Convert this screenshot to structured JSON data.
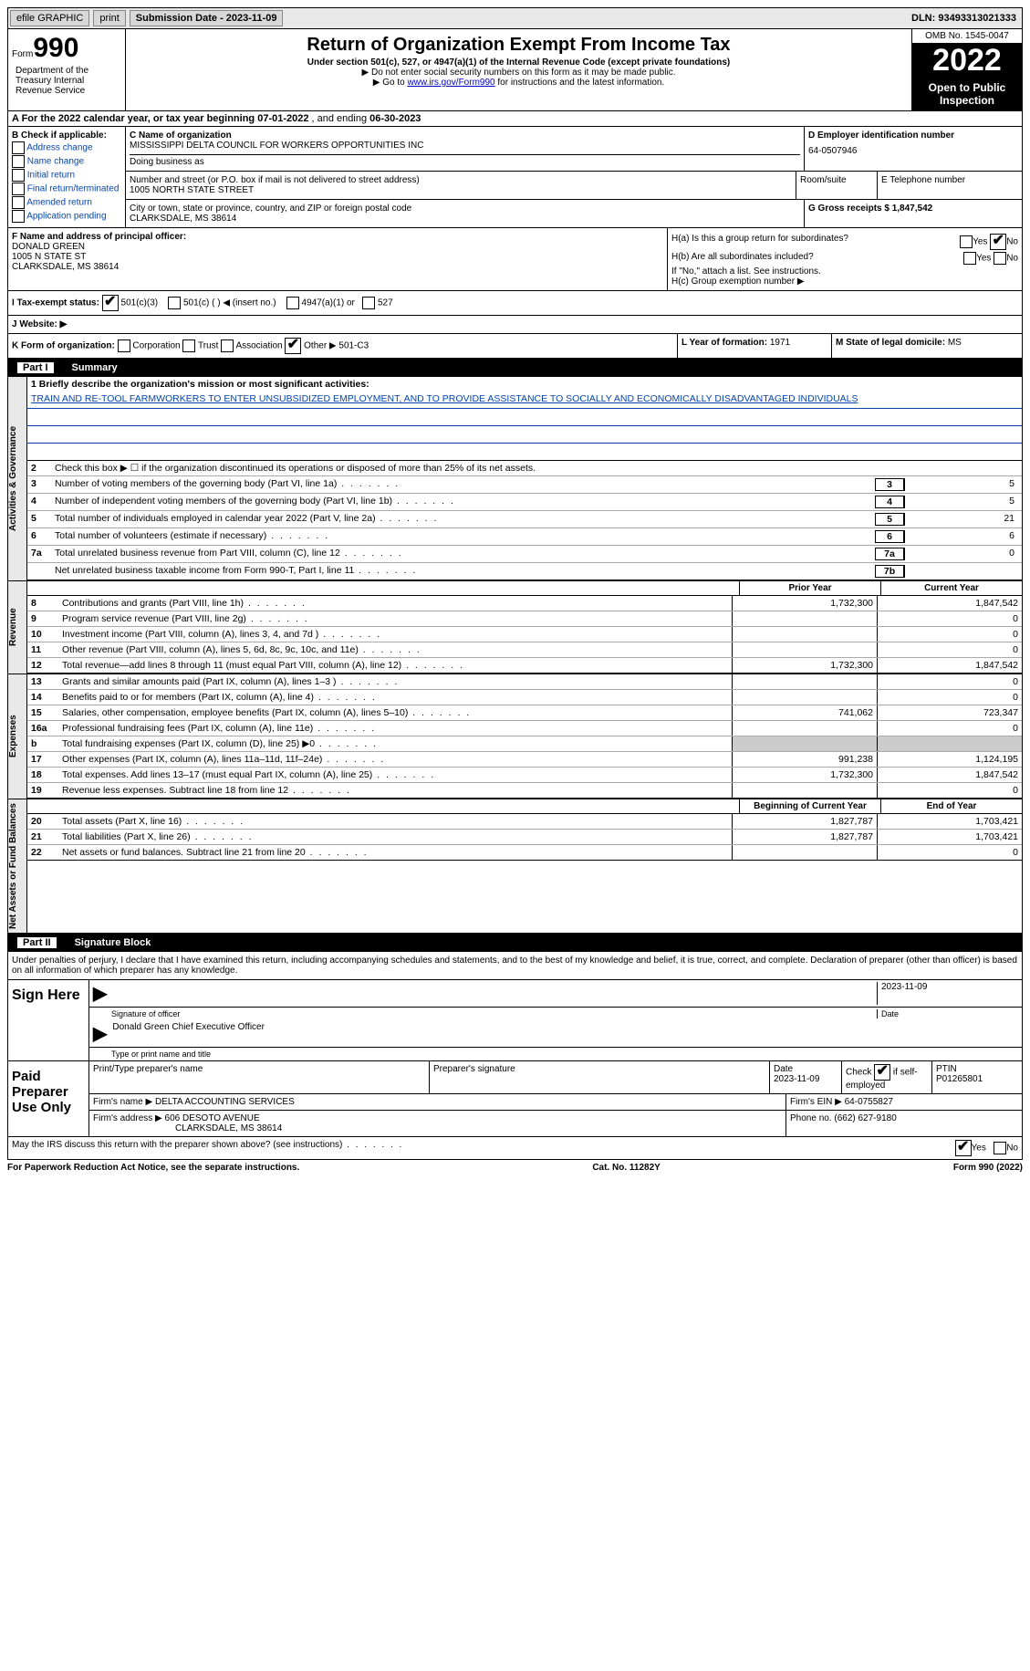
{
  "topbar": {
    "efile": "efile GRAPHIC",
    "print": "print",
    "submission_label": "Submission Date - 2023-11-09",
    "dln": "DLN: 93493313021333"
  },
  "header": {
    "form_prefix": "Form",
    "form_number": "990",
    "title": "Return of Organization Exempt From Income Tax",
    "subtitle": "Under section 501(c), 527, or 4947(a)(1) of the Internal Revenue Code (except private foundations)",
    "note1": "▶ Do not enter social security numbers on this form as it may be made public.",
    "note2_prefix": "▶ Go to ",
    "note2_link": "www.irs.gov/Form990",
    "note2_suffix": " for instructions and the latest information.",
    "omb": "OMB No. 1545-0047",
    "year": "2022",
    "open": "Open to Public Inspection",
    "dept": "Department of the Treasury Internal Revenue Service"
  },
  "row_a": {
    "text": "A For the 2022 calendar year, or tax year beginning ",
    "begin": "07-01-2022",
    "mid": " , and ending ",
    "end": "06-30-2023"
  },
  "section_b": {
    "title": "B Check if applicable:",
    "opts": [
      "Address change",
      "Name change",
      "Initial return",
      "Final return/terminated",
      "Amended return",
      "Application pending"
    ]
  },
  "section_c": {
    "name_lbl": "C Name of organization",
    "name": "MISSISSIPPI DELTA COUNCIL FOR WORKERS OPPORTUNITIES INC",
    "dba_lbl": "Doing business as",
    "addr_lbl": "Number and street (or P.O. box if mail is not delivered to street address)",
    "addr": "1005 NORTH STATE STREET",
    "room_lbl": "Room/suite",
    "city_lbl": "City or town, state or province, country, and ZIP or foreign postal code",
    "city": "CLARKSDALE, MS  38614"
  },
  "section_d": {
    "lbl": "D Employer identification number",
    "ein": "64-0507946"
  },
  "section_e": {
    "lbl": "E Telephone number"
  },
  "section_g": {
    "lbl": "G Gross receipts $ ",
    "val": "1,847,542"
  },
  "section_f": {
    "lbl": "F Name and address of principal officer:",
    "name": "DONALD GREEN",
    "addr1": "1005 N STATE ST",
    "addr2": "CLARKSDALE, MS  38614"
  },
  "section_h": {
    "ha": "H(a)  Is this a group return for subordinates?",
    "hb": "H(b)  Are all subordinates included?",
    "hb_note": "If \"No,\" attach a list. See instructions.",
    "hc": "H(c)  Group exemption number ▶",
    "yes": "Yes",
    "no": "No"
  },
  "row_i": {
    "lbl": "I  Tax-exempt status:",
    "o1": "501(c)(3)",
    "o2": "501(c) (   ) ◀ (insert no.)",
    "o3": "4947(a)(1) or",
    "o4": "527"
  },
  "row_j": "J  Website: ▶",
  "row_k": {
    "lbl": "K Form of organization:",
    "opts": [
      "Corporation",
      "Trust",
      "Association",
      "Other ▶"
    ],
    "other_val": "501-C3"
  },
  "row_l": {
    "lbl": "L Year of formation: ",
    "val": "1971"
  },
  "row_m": {
    "lbl": "M State of legal domicile: ",
    "val": "MS"
  },
  "part1": {
    "num": "Part I",
    "title": "Summary"
  },
  "mission": {
    "prompt": "1    Briefly describe the organization's mission or most significant activities:",
    "text": "TRAIN AND RE-TOOL FARMWORKERS TO ENTER UNSUBSIDIZED EMPLOYMENT, AND TO PROVIDE ASSISTANCE TO SOCIALLY AND ECONOMICALLY DISADVANTAGED INDIVIDUALS"
  },
  "line2": "Check this box ▶ ☐ if the organization discontinued its operations or disposed of more than 25% of its net assets.",
  "governance": [
    {
      "n": "3",
      "d": "Number of voting members of the governing body (Part VI, line 1a)",
      "c": "3",
      "v": "5"
    },
    {
      "n": "4",
      "d": "Number of independent voting members of the governing body (Part VI, line 1b)",
      "c": "4",
      "v": "5"
    },
    {
      "n": "5",
      "d": "Total number of individuals employed in calendar year 2022 (Part V, line 2a)",
      "c": "5",
      "v": "21"
    },
    {
      "n": "6",
      "d": "Total number of volunteers (estimate if necessary)",
      "c": "6",
      "v": "6"
    },
    {
      "n": "7a",
      "d": "Total unrelated business revenue from Part VIII, column (C), line 12",
      "c": "7a",
      "v": "0"
    },
    {
      "n": "",
      "d": "Net unrelated business taxable income from Form 990-T, Part I, line 11",
      "c": "7b",
      "v": ""
    }
  ],
  "col_headers": {
    "prior": "Prior Year",
    "current": "Current Year"
  },
  "revenue": [
    {
      "n": "8",
      "d": "Contributions and grants (Part VIII, line 1h)",
      "p": "1,732,300",
      "c": "1,847,542"
    },
    {
      "n": "9",
      "d": "Program service revenue (Part VIII, line 2g)",
      "p": "",
      "c": "0"
    },
    {
      "n": "10",
      "d": "Investment income (Part VIII, column (A), lines 3, 4, and 7d )",
      "p": "",
      "c": "0"
    },
    {
      "n": "11",
      "d": "Other revenue (Part VIII, column (A), lines 5, 6d, 8c, 9c, 10c, and 11e)",
      "p": "",
      "c": "0"
    },
    {
      "n": "12",
      "d": "Total revenue—add lines 8 through 11 (must equal Part VIII, column (A), line 12)",
      "p": "1,732,300",
      "c": "1,847,542"
    }
  ],
  "expenses": [
    {
      "n": "13",
      "d": "Grants and similar amounts paid (Part IX, column (A), lines 1–3 )",
      "p": "",
      "c": "0"
    },
    {
      "n": "14",
      "d": "Benefits paid to or for members (Part IX, column (A), line 4)",
      "p": "",
      "c": "0"
    },
    {
      "n": "15",
      "d": "Salaries, other compensation, employee benefits (Part IX, column (A), lines 5–10)",
      "p": "741,062",
      "c": "723,347"
    },
    {
      "n": "16a",
      "d": "Professional fundraising fees (Part IX, column (A), line 11e)",
      "p": "",
      "c": "0"
    },
    {
      "n": "b",
      "d": "Total fundraising expenses (Part IX, column (D), line 25) ▶0",
      "p": "shade",
      "c": "shade"
    },
    {
      "n": "17",
      "d": "Other expenses (Part IX, column (A), lines 11a–11d, 11f–24e)",
      "p": "991,238",
      "c": "1,124,195"
    },
    {
      "n": "18",
      "d": "Total expenses. Add lines 13–17 (must equal Part IX, column (A), line 25)",
      "p": "1,732,300",
      "c": "1,847,542"
    },
    {
      "n": "19",
      "d": "Revenue less expenses. Subtract line 18 from line 12",
      "p": "",
      "c": "0"
    }
  ],
  "net_headers": {
    "begin": "Beginning of Current Year",
    "end": "End of Year"
  },
  "netassets": [
    {
      "n": "20",
      "d": "Total assets (Part X, line 16)",
      "p": "1,827,787",
      "c": "1,703,421"
    },
    {
      "n": "21",
      "d": "Total liabilities (Part X, line 26)",
      "p": "1,827,787",
      "c": "1,703,421"
    },
    {
      "n": "22",
      "d": "Net assets or fund balances. Subtract line 21 from line 20",
      "p": "",
      "c": "0"
    }
  ],
  "vtabs": {
    "gov": "Activities & Governance",
    "rev": "Revenue",
    "exp": "Expenses",
    "net": "Net Assets or Fund Balances"
  },
  "part2": {
    "num": "Part II",
    "title": "Signature Block"
  },
  "sig_intro": "Under penalties of perjury, I declare that I have examined this return, including accompanying schedules and statements, and to the best of my knowledge and belief, it is true, correct, and complete. Declaration of preparer (other than officer) is based on all information of which preparer has any knowledge.",
  "sign": {
    "label": "Sign Here",
    "sig_lbl": "Signature of officer",
    "date": "2023-11-09",
    "date_lbl": "Date",
    "name": "Donald Green  Chief Executive Officer",
    "name_lbl": "Type or print name and title"
  },
  "prep": {
    "label": "Paid Preparer Use Only",
    "h1": "Print/Type preparer's name",
    "h2": "Preparer's signature",
    "h3": "Date",
    "date": "2023-11-09",
    "h4_a": "Check",
    "h4_b": "if self-employed",
    "h5": "PTIN",
    "ptin": "P01265801",
    "firm_lbl": "Firm's name    ▶ ",
    "firm": "DELTA ACCOUNTING SERVICES",
    "ein_lbl": "Firm's EIN ▶ ",
    "ein": "64-0755827",
    "addr_lbl": "Firm's address ▶ ",
    "addr1": "606 DESOTO AVENUE",
    "addr2": "CLARKSDALE, MS  38614",
    "phone_lbl": "Phone no. ",
    "phone": "(662) 627-9180"
  },
  "bottom": {
    "q": "May the IRS discuss this return with the preparer shown above? (see instructions)",
    "yes": "Yes",
    "no": "No"
  },
  "footer": {
    "left": "For Paperwork Reduction Act Notice, see the separate instructions.",
    "mid": "Cat. No. 11282Y",
    "right": "Form 990 (2022)"
  }
}
